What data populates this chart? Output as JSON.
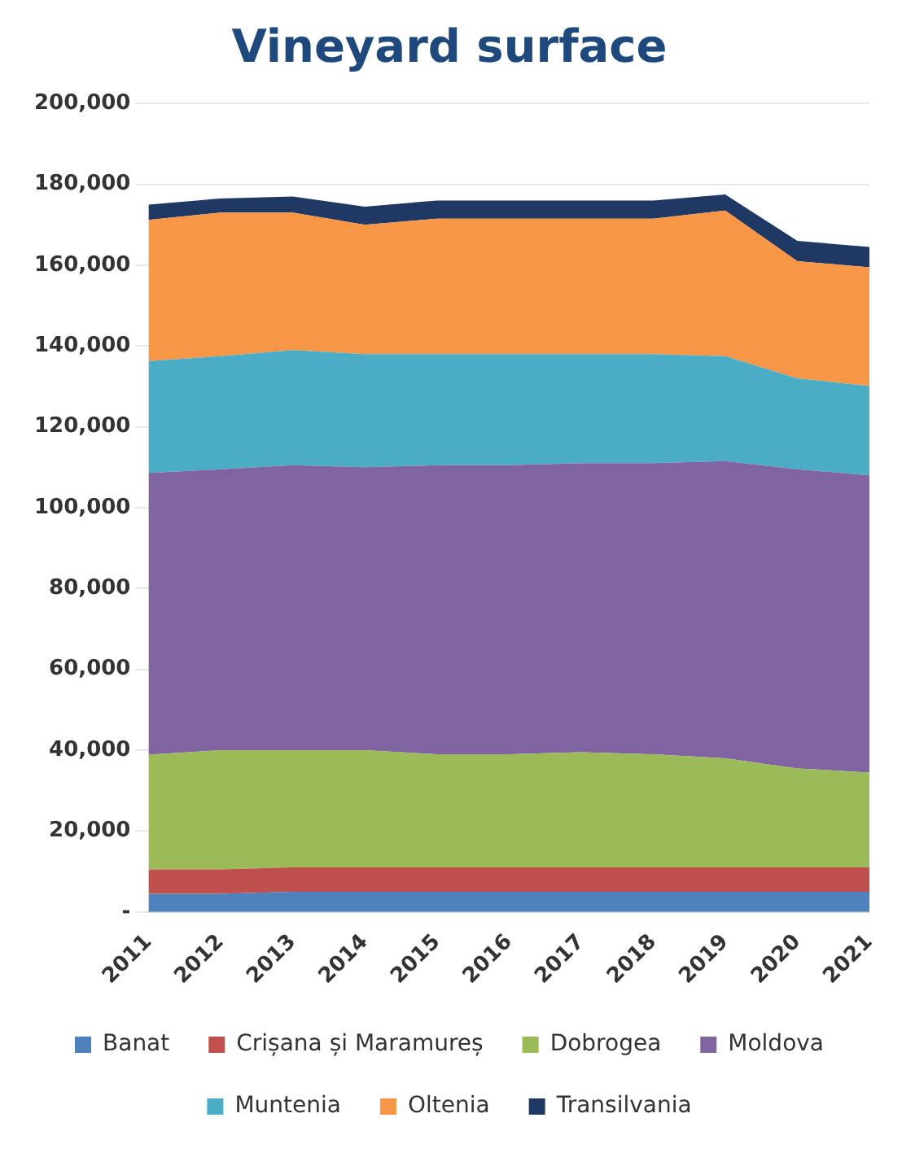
{
  "chart_data": {
    "type": "area",
    "title": "Vineyard surface",
    "stacked": true,
    "grid": "y",
    "legend": "bottom",
    "categories": [
      "2011",
      "2012",
      "2013",
      "2014",
      "2015",
      "2016",
      "2017",
      "2018",
      "2019",
      "2020",
      "2021"
    ],
    "ylim": [
      0,
      200000
    ],
    "yticks": [
      {
        "value": 0,
        "label": "-"
      },
      {
        "value": 20000,
        "label": "20,000"
      },
      {
        "value": 40000,
        "label": "40,000"
      },
      {
        "value": 60000,
        "label": "60,000"
      },
      {
        "value": 80000,
        "label": "80,000"
      },
      {
        "value": 100000,
        "label": "100,000"
      },
      {
        "value": 120000,
        "label": "120,000"
      },
      {
        "value": 140000,
        "label": "140,000"
      },
      {
        "value": 160000,
        "label": "160,000"
      },
      {
        "value": 180000,
        "label": "180,000"
      },
      {
        "value": 200000,
        "label": "200,000"
      }
    ],
    "series": [
      {
        "name": "Banat",
        "color": "#4f81bd",
        "values": [
          4500,
          4500,
          5000,
          5000,
          5000,
          5000,
          5000,
          5000,
          5000,
          5000,
          5000
        ]
      },
      {
        "name": "Crișana și Maramureș",
        "color": "#c0504d",
        "values": [
          6000,
          6000,
          6000,
          6000,
          6000,
          6000,
          6000,
          6000,
          6000,
          6000,
          6000
        ]
      },
      {
        "name": "Dobrogea",
        "color": "#9bbb59",
        "values": [
          28400,
          29500,
          29000,
          29000,
          28000,
          28000,
          28500,
          28000,
          27000,
          24500,
          23500
        ]
      },
      {
        "name": "Moldova",
        "color": "#8064a2",
        "values": [
          69700,
          69500,
          70500,
          70000,
          71500,
          71500,
          71500,
          72000,
          73500,
          74000,
          73500
        ]
      },
      {
        "name": "Muntenia",
        "color": "#4bacc6",
        "values": [
          27700,
          28000,
          28500,
          28000,
          27500,
          27500,
          27000,
          27000,
          26000,
          22500,
          22100
        ]
      },
      {
        "name": "Oltenia",
        "color": "#f79646",
        "values": [
          34900,
          35500,
          34000,
          32000,
          33500,
          33500,
          33500,
          33500,
          36000,
          29000,
          29400
        ]
      },
      {
        "name": "Transilvania",
        "color": "#1f3864",
        "values": [
          3800,
          3500,
          4000,
          4500,
          4500,
          4500,
          4500,
          4500,
          4000,
          5000,
          5000
        ]
      }
    ]
  }
}
